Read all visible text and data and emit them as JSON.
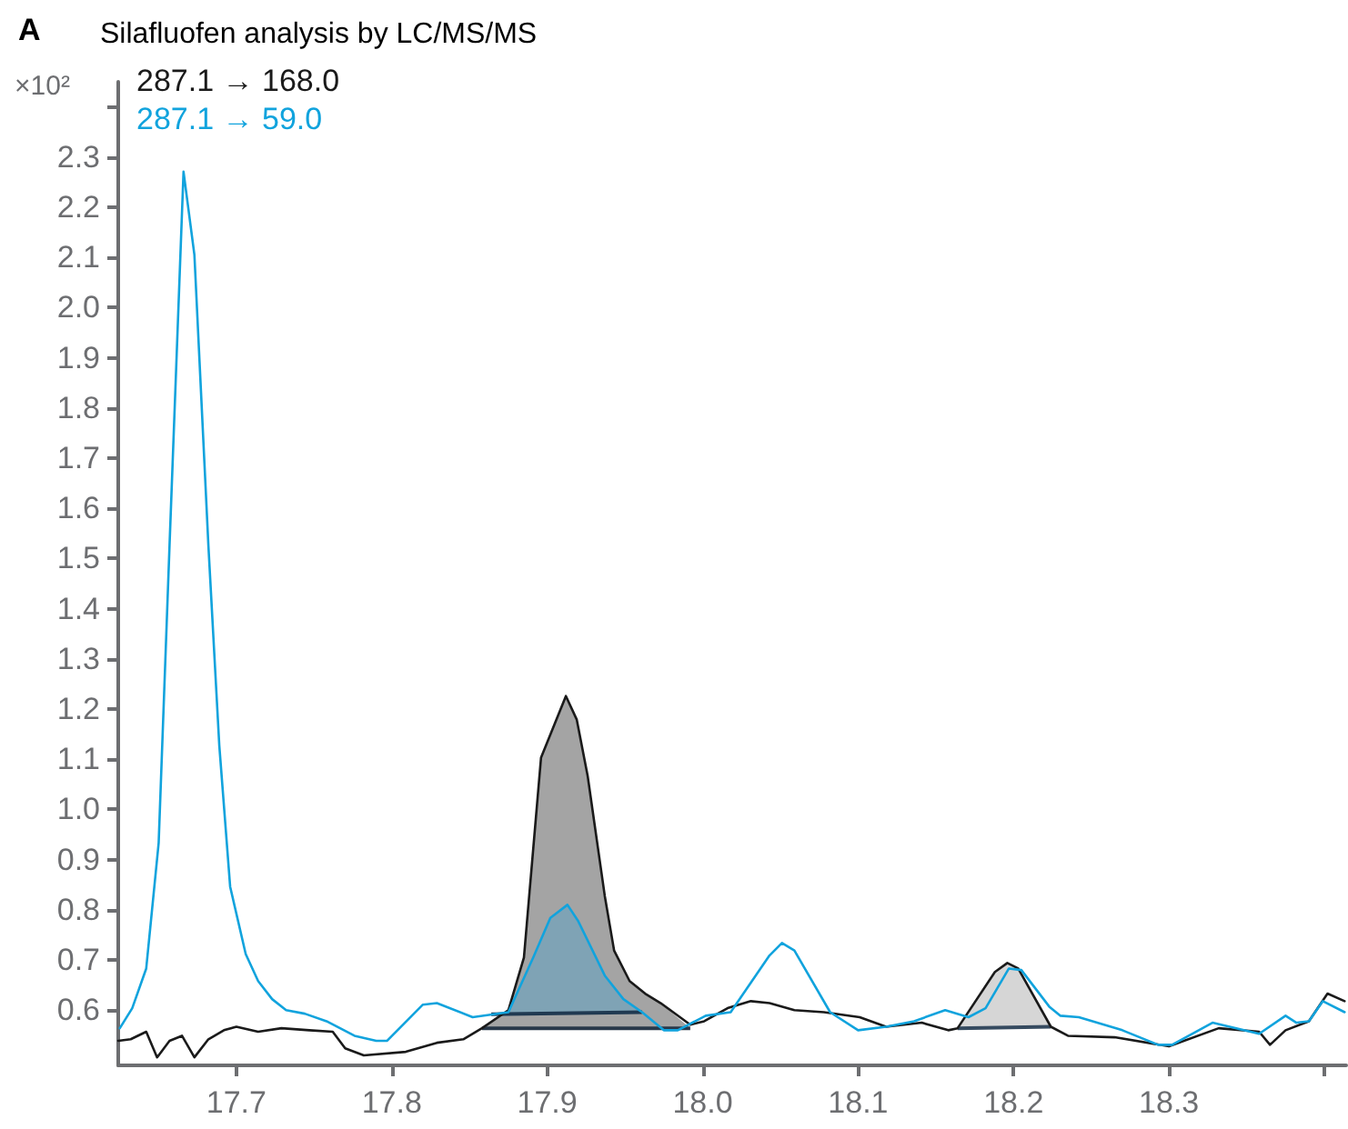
{
  "chart_data": {
    "type": "line",
    "title": "Silafluofen analysis by LC/MS/MS",
    "annotations": [
      "A"
    ],
    "ylabel": "×10²",
    "xlim": [
      17.624,
      18.414
    ],
    "xticks": [
      17.7,
      17.8,
      17.9,
      {
        "value": 18.0,
        "label": "18.0"
      },
      18.1,
      18.2,
      18.3,
      {
        "value": 18.4,
        "label": null
      }
    ],
    "ylim": [
      0.49,
      2.45
    ],
    "yticks": [
      0.6,
      0.7,
      0.8,
      0.9,
      {
        "value": 1.0,
        "label": "1.0"
      },
      1.1,
      1.2,
      1.3,
      1.4,
      1.5,
      1.6,
      1.7,
      1.8,
      1.9,
      {
        "value": 2.0,
        "label": "2.0"
      },
      2.1,
      2.2,
      2.3,
      {
        "value": 2.4,
        "label": null
      }
    ],
    "grid": false,
    "legend": "top left",
    "marker": "none",
    "line_style": "solid",
    "series": [
      {
        "type": "area",
        "color": "#a4a4a4",
        "x": [
          17.858,
          17.875,
          17.885,
          17.896,
          17.912,
          17.919,
          17.926,
          17.937,
          17.943,
          17.953,
          17.963,
          17.973,
          17.992
        ],
        "values": [
          0.564,
          0.6,
          0.705,
          1.103,
          1.226,
          1.179,
          1.067,
          0.828,
          0.719,
          0.658,
          0.633,
          0.614,
          0.564
        ]
      },
      {
        "type": "area",
        "color": "#7fa3b5",
        "x": [
          17.864,
          17.875,
          17.891,
          17.902,
          17.913,
          17.92,
          17.937,
          17.949,
          17.961
        ],
        "values": [
          0.592,
          0.596,
          0.705,
          0.784,
          0.81,
          0.777,
          0.669,
          0.622,
          0.596
        ]
      },
      {
        "type": "area",
        "color": "#d6d6d6",
        "x": [
          18.164,
          18.188,
          18.196,
          18.203,
          18.224
        ],
        "values": [
          0.564,
          0.676,
          0.694,
          0.683,
          0.567
        ]
      },
      {
        "name": "287.1 → 168.0",
        "color": "#1a1a1a",
        "x": [
          17.624,
          17.632,
          17.642,
          17.649,
          17.657,
          17.665,
          17.673,
          17.682,
          17.692,
          17.7,
          17.714,
          17.729,
          17.747,
          17.762,
          17.77,
          17.782,
          17.809,
          17.829,
          17.846,
          17.858,
          17.875,
          17.885,
          17.896,
          17.912,
          17.919,
          17.926,
          17.937,
          17.943,
          17.953,
          17.963,
          17.973,
          17.992,
          18.001,
          18.016,
          18.031,
          18.043,
          18.059,
          18.078,
          18.101,
          18.118,
          18.141,
          18.158,
          18.164,
          18.188,
          18.196,
          18.203,
          18.224,
          18.235,
          18.265,
          18.3,
          18.332,
          18.358,
          18.365,
          18.375,
          18.39,
          18.402,
          18.413
        ],
        "values": [
          0.539,
          0.542,
          0.557,
          0.506,
          0.539,
          0.549,
          0.506,
          0.542,
          0.56,
          0.567,
          0.557,
          0.564,
          0.56,
          0.557,
          0.524,
          0.51,
          0.517,
          0.535,
          0.542,
          0.564,
          0.6,
          0.705,
          1.103,
          1.226,
          1.179,
          1.067,
          0.828,
          0.719,
          0.658,
          0.633,
          0.614,
          0.571,
          0.578,
          0.604,
          0.618,
          0.614,
          0.6,
          0.596,
          0.586,
          0.567,
          0.575,
          0.56,
          0.564,
          0.676,
          0.694,
          0.683,
          0.567,
          0.549,
          0.546,
          0.528,
          0.564,
          0.557,
          0.531,
          0.56,
          0.578,
          0.633,
          0.618
        ]
      },
      {
        "name": "287.1 → 59.0",
        "color": "#11a3dd",
        "x": [
          17.625,
          17.633,
          17.642,
          17.65,
          17.657,
          17.666,
          17.673,
          17.682,
          17.689,
          17.696,
          17.706,
          17.714,
          17.723,
          17.732,
          17.744,
          17.758,
          17.776,
          17.79,
          17.797,
          17.82,
          17.829,
          17.852,
          17.875,
          17.891,
          17.902,
          17.913,
          17.92,
          17.937,
          17.949,
          17.961,
          17.975,
          17.984,
          18.002,
          18.018,
          18.043,
          18.051,
          18.059,
          18.082,
          18.1,
          18.118,
          18.136,
          18.156,
          18.171,
          18.182,
          18.197,
          18.205,
          18.223,
          18.23,
          18.242,
          18.27,
          18.293,
          18.302,
          18.328,
          18.358,
          18.375,
          18.382,
          18.39,
          18.399,
          18.413
        ],
        "values": [
          0.564,
          0.604,
          0.683,
          0.933,
          1.526,
          2.271,
          2.105,
          1.526,
          1.128,
          0.846,
          0.712,
          0.658,
          0.622,
          0.6,
          0.593,
          0.578,
          0.549,
          0.539,
          0.539,
          0.611,
          0.614,
          0.586,
          0.596,
          0.705,
          0.784,
          0.81,
          0.777,
          0.669,
          0.622,
          0.596,
          0.56,
          0.56,
          0.589,
          0.596,
          0.709,
          0.734,
          0.719,
          0.596,
          0.56,
          0.567,
          0.578,
          0.6,
          0.586,
          0.604,
          0.683,
          0.68,
          0.607,
          0.589,
          0.586,
          0.56,
          0.531,
          0.531,
          0.575,
          0.553,
          0.589,
          0.575,
          0.578,
          0.618,
          0.596
        ]
      }
    ]
  }
}
